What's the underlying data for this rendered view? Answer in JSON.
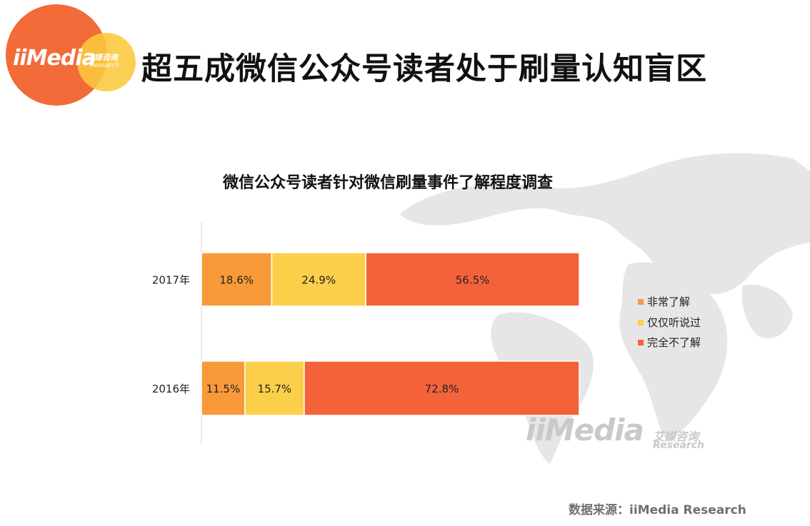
{
  "logo": {
    "brand": "iiMedia",
    "cn": "艾媒咨询",
    "en": "Research"
  },
  "page": {
    "title": "超五成微信公众号读者处于刷量认知盲区"
  },
  "watermark": {
    "brand": "iiMedia",
    "cn": "艾媒咨询",
    "en": "Research"
  },
  "source": {
    "text": "数据来源：iiMedia Research"
  },
  "colors": {
    "very_aware": "#f99a3a",
    "heard_only": "#fccf4b",
    "unaware": "#f4623a",
    "title_accent": "#f26b38"
  },
  "chart_data": {
    "type": "bar",
    "orientation": "horizontal",
    "stacked": true,
    "title": "微信公众号读者针对微信刷量事件了解程度调查",
    "categories": [
      "2017年",
      "2016年"
    ],
    "series": [
      {
        "name": "非常了解",
        "values": [
          18.6,
          11.5
        ],
        "labels": [
          "18.6%",
          "11.5%"
        ],
        "color": "#f99a3a"
      },
      {
        "name": "仅仅听说过",
        "values": [
          24.9,
          15.7
        ],
        "labels": [
          "24.9%",
          "15.7%"
        ],
        "color": "#fccf4b"
      },
      {
        "name": "完全不了解",
        "values": [
          56.5,
          72.8
        ],
        "labels": [
          "56.5%",
          "72.8%"
        ],
        "color": "#f4623a"
      }
    ],
    "xlim": [
      0,
      100
    ],
    "legend": "right",
    "grid": false
  }
}
